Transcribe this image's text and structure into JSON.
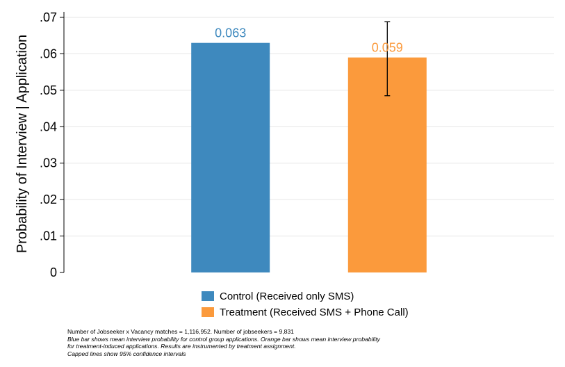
{
  "chart_data": {
    "type": "bar",
    "categories": [
      "Control (Received only SMS)",
      "Treatment (Received SMS + Phone Call)"
    ],
    "values": [
      0.063,
      0.059
    ],
    "data_labels": [
      "0.063",
      "0.059"
    ],
    "colors": [
      "#3e89be",
      "#fb9a3c"
    ],
    "error_bar": {
      "category_index": 1,
      "lower": 0.0485,
      "upper": 0.0688
    },
    "title": "",
    "xlabel": "",
    "ylabel": "Probability of Interview | Application",
    "ylim": [
      0,
      0.07
    ],
    "yticks": [
      0,
      0.01,
      0.02,
      0.03,
      0.04,
      0.05,
      0.06,
      0.07
    ],
    "ytick_labels": [
      "0",
      ".01",
      ".02",
      ".03",
      ".04",
      ".05",
      ".06",
      ".07"
    ],
    "grid": true,
    "legend": {
      "placement": "bottom",
      "entries": [
        "Control (Received only SMS)",
        "Treatment (Received SMS + Phone Call)"
      ]
    }
  },
  "notes": {
    "line1": "Number of Jobseeker x Vacancy matches = 1,116,952. Number of jobseekers = 9,831",
    "line2": "Blue bar shows mean interview probability for control group applications. Orange bar shows mean interview probability",
    "line3": "for treatment-induced applications. Results are instrumented by treatment assignment.",
    "line4": "Capped lines show 95% confidence intervals"
  }
}
